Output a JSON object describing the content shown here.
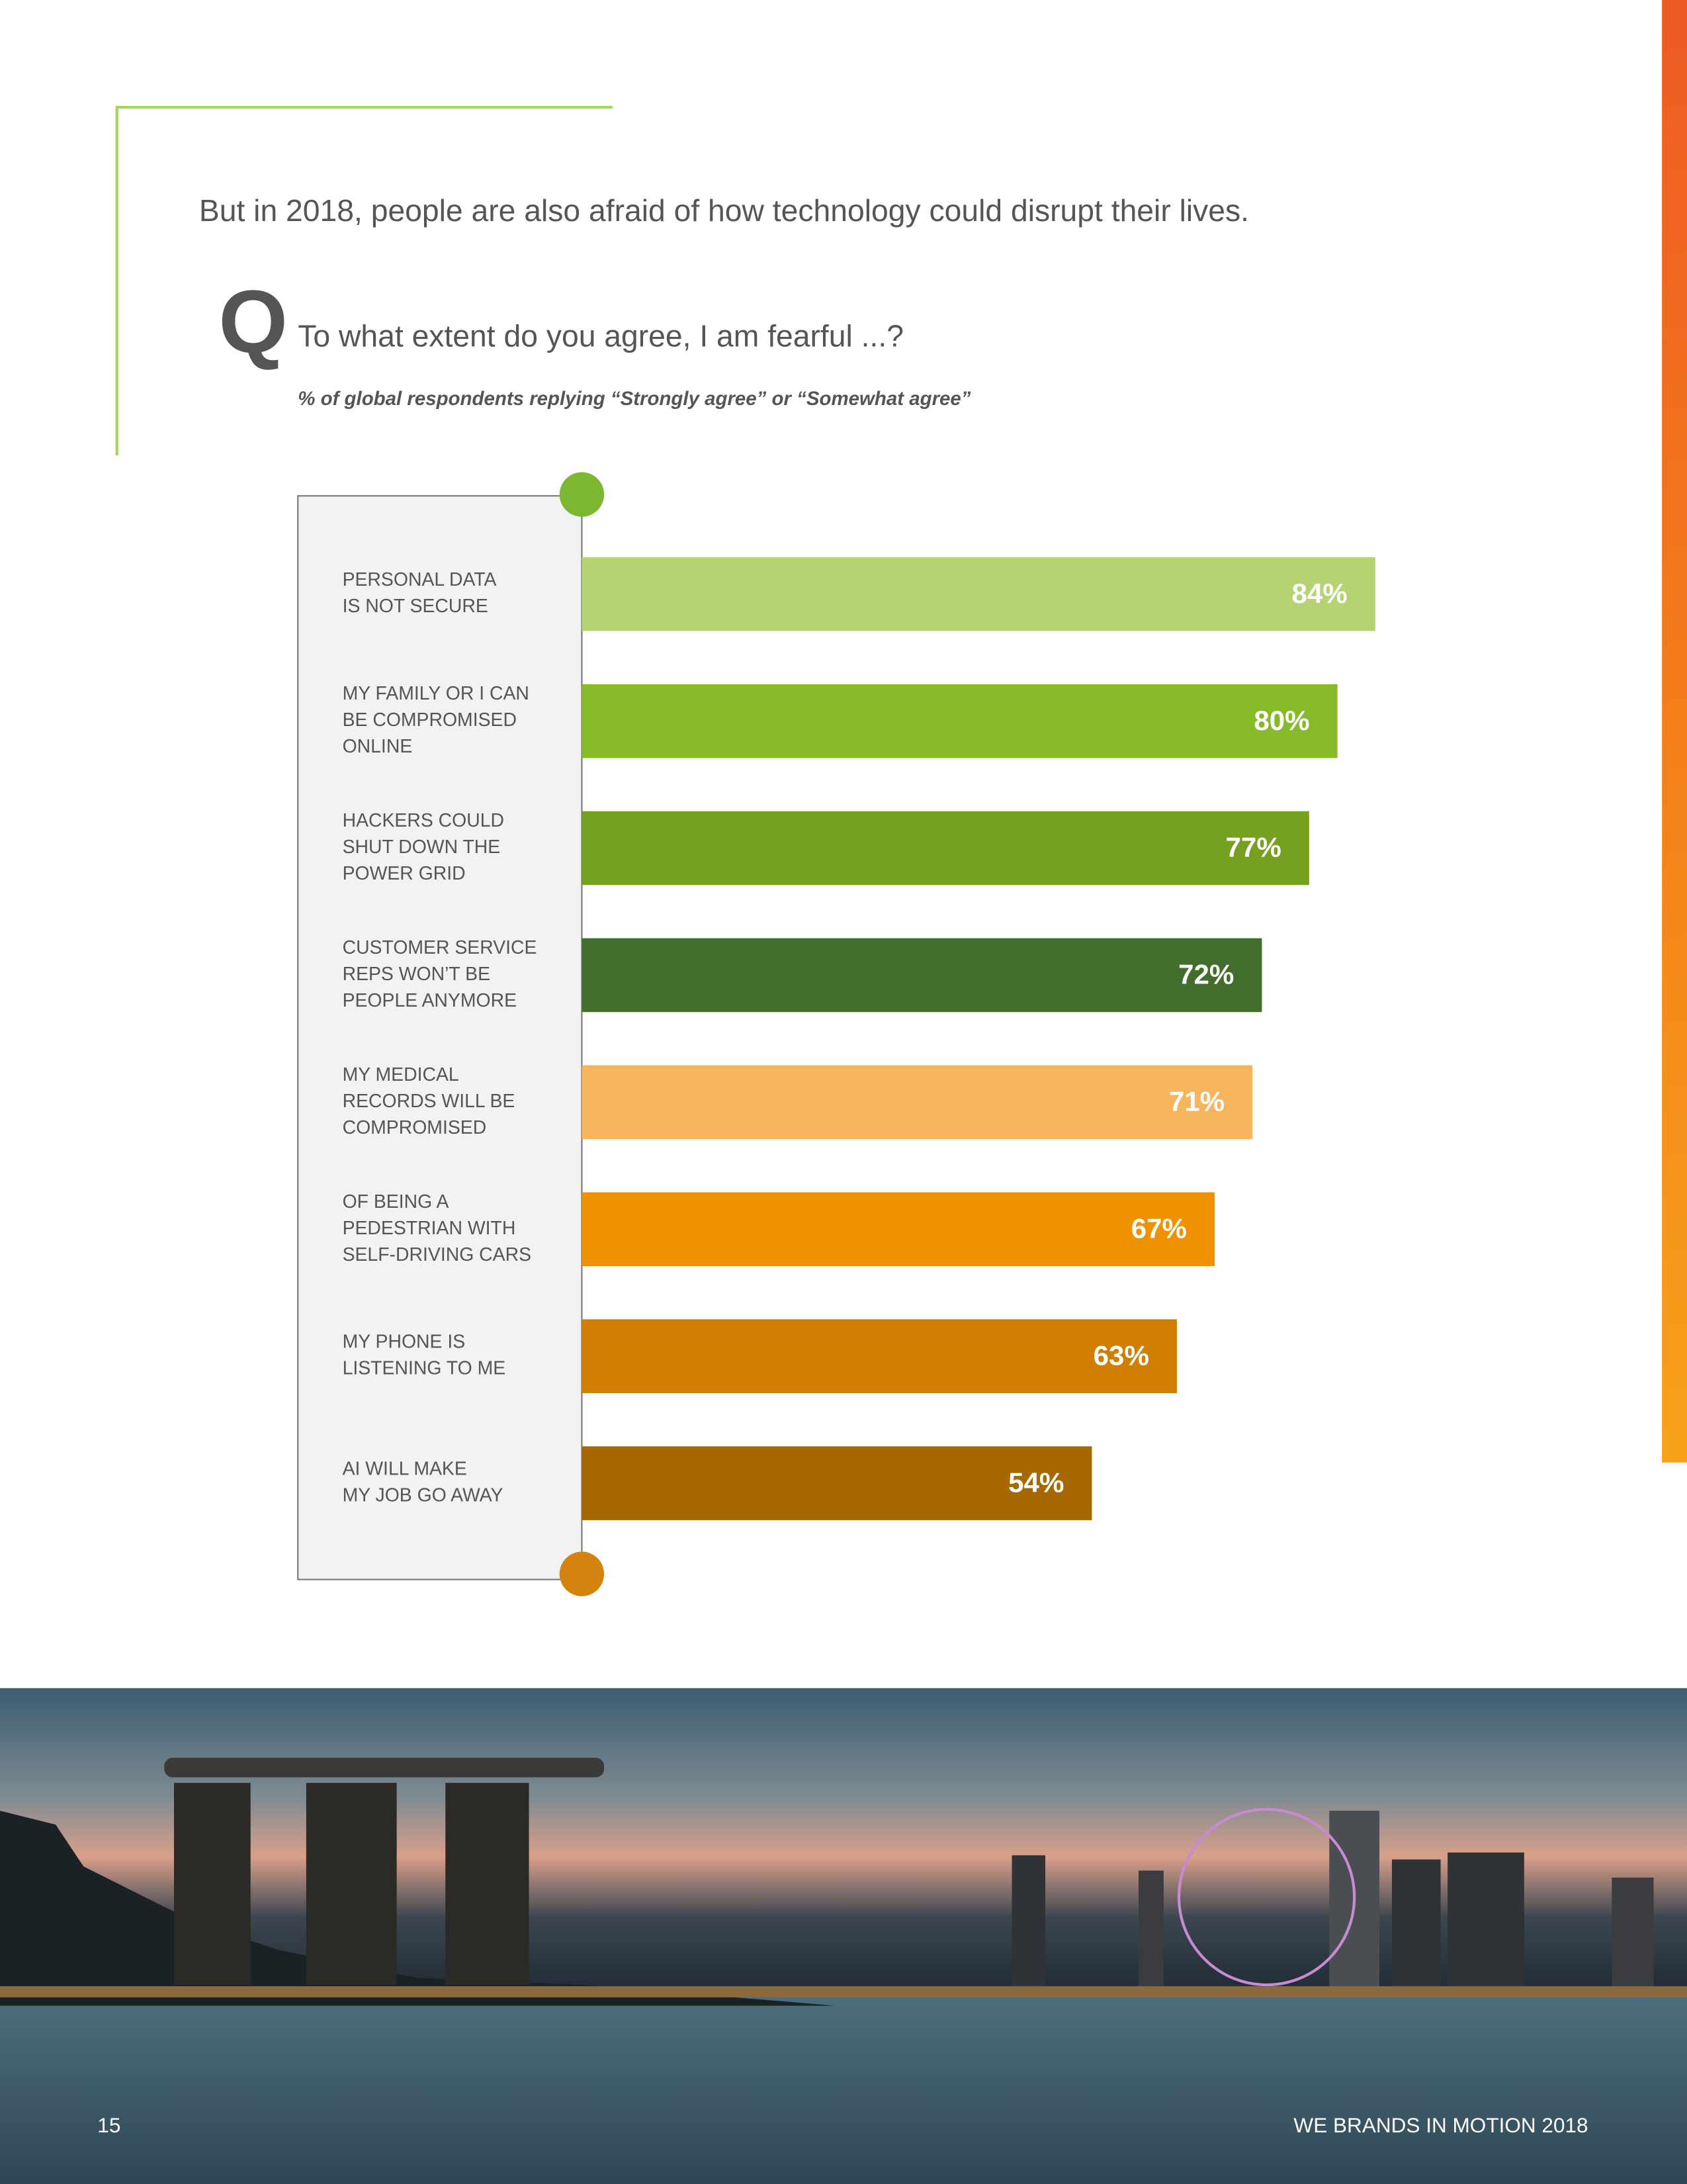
{
  "page": {
    "headline": "But in 2018, people are also afraid of how technology could disrupt their lives.",
    "q_mark": "Q",
    "question": "To what extent do you agree, I am fearful ...?",
    "page_number": "15",
    "footer": "WE BRANDS IN MOTION 2018"
  },
  "chart_data": {
    "type": "bar",
    "subtitle": "% of global respondents replying “Strongly agree” or “Somewhat agree”",
    "categories": [
      [
        "PERSONAL DATA",
        "IS NOT SECURE"
      ],
      [
        "MY FAMILY OR I CAN",
        "BE COMPROMISED",
        "ONLINE"
      ],
      [
        "HACKERS COULD",
        "SHUT DOWN THE",
        "POWER GRID"
      ],
      [
        "CUSTOMER SERVICE",
        "REPS WON’T BE",
        "PEOPLE ANYMORE"
      ],
      [
        "MY MEDICAL",
        "RECORDS WILL BE",
        "COMPROMISED"
      ],
      [
        "OF BEING A",
        "PEDESTRIAN WITH",
        "SELF-DRIVING CARS"
      ],
      [
        "MY PHONE IS",
        "LISTENING TO ME"
      ],
      [
        "AI WILL MAKE",
        "MY JOB GO AWAY"
      ]
    ],
    "values": [
      84,
      80,
      77,
      72,
      71,
      67,
      63,
      54
    ],
    "value_labels": [
      "84%",
      "80%",
      "77%",
      "72%",
      "71%",
      "67%",
      "63%",
      "54%"
    ],
    "colors": [
      "#b5d373",
      "#86ba28",
      "#75a020",
      "#426d2b",
      "#f6b45c",
      "#f09200",
      "#d07e00",
      "#a86800"
    ],
    "xlim": [
      0,
      100
    ]
  }
}
